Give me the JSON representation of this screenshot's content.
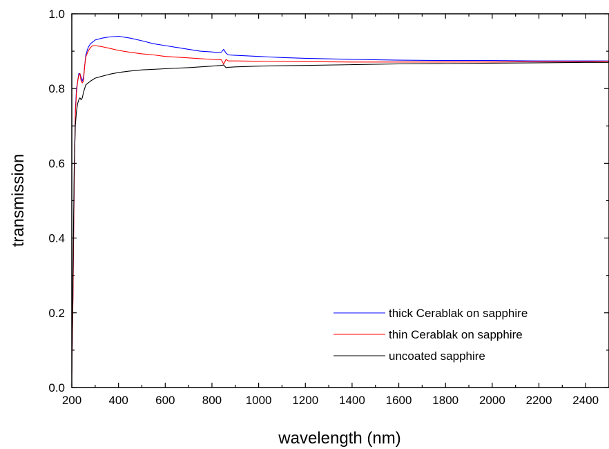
{
  "chart_data": {
    "type": "line",
    "xlabel": "wavelength (nm)",
    "ylabel": "transmission",
    "xlim": [
      200,
      2500
    ],
    "ylim": [
      0.0,
      1.0
    ],
    "x_ticks": [
      200,
      400,
      600,
      800,
      1000,
      1200,
      1400,
      1600,
      1800,
      2000,
      2200,
      2400
    ],
    "y_ticks": [
      0.0,
      0.2,
      0.4,
      0.6,
      0.8,
      1.0
    ],
    "y_tick_labels": [
      "0.0",
      "0.2",
      "0.4",
      "0.6",
      "0.8",
      "1.0"
    ],
    "grid": false,
    "legend_position": "lower-right",
    "series": [
      {
        "name": "thick Cerablak on sapphire",
        "color": "#0000ff",
        "x": [
          200,
          205,
          210,
          215,
          220,
          225,
          230,
          235,
          240,
          245,
          250,
          255,
          260,
          270,
          280,
          300,
          330,
          360,
          400,
          450,
          500,
          550,
          600,
          650,
          700,
          750,
          800,
          820,
          840,
          850,
          860,
          870,
          900,
          1000,
          1100,
          1200,
          1400,
          1600,
          1800,
          2000,
          2200,
          2400,
          2500
        ],
        "y": [
          0.04,
          0.25,
          0.55,
          0.74,
          0.8,
          0.82,
          0.84,
          0.84,
          0.83,
          0.82,
          0.83,
          0.86,
          0.89,
          0.91,
          0.92,
          0.93,
          0.935,
          0.938,
          0.94,
          0.935,
          0.928,
          0.92,
          0.915,
          0.91,
          0.905,
          0.9,
          0.898,
          0.896,
          0.897,
          0.905,
          0.895,
          0.89,
          0.889,
          0.886,
          0.883,
          0.881,
          0.878,
          0.876,
          0.875,
          0.875,
          0.874,
          0.874,
          0.874
        ]
      },
      {
        "name": "thin Cerablak on sapphire",
        "color": "#ff0000",
        "x": [
          200,
          205,
          210,
          215,
          220,
          225,
          230,
          235,
          240,
          245,
          250,
          255,
          260,
          270,
          280,
          290,
          300,
          330,
          360,
          400,
          450,
          500,
          550,
          600,
          700,
          800,
          840,
          850,
          860,
          870,
          900,
          1000,
          1200,
          1400,
          1600,
          1800,
          2000,
          2200,
          2400,
          2500
        ],
        "y": [
          0.03,
          0.24,
          0.54,
          0.73,
          0.79,
          0.82,
          0.835,
          0.84,
          0.82,
          0.815,
          0.82,
          0.86,
          0.885,
          0.9,
          0.91,
          0.915,
          0.915,
          0.912,
          0.908,
          0.902,
          0.897,
          0.893,
          0.89,
          0.886,
          0.882,
          0.878,
          0.877,
          0.865,
          0.878,
          0.874,
          0.874,
          0.873,
          0.872,
          0.871,
          0.871,
          0.871,
          0.871,
          0.872,
          0.872,
          0.873
        ]
      },
      {
        "name": "uncoated sapphire",
        "color": "#000000",
        "x": [
          200,
          205,
          210,
          215,
          220,
          225,
          230,
          235,
          240,
          245,
          250,
          255,
          260,
          270,
          280,
          300,
          330,
          360,
          400,
          450,
          500,
          600,
          700,
          800,
          840,
          850,
          860,
          870,
          900,
          1000,
          1200,
          1400,
          1600,
          1800,
          2000,
          2200,
          2400,
          2500
        ],
        "y": [
          0.04,
          0.3,
          0.58,
          0.7,
          0.74,
          0.76,
          0.77,
          0.775,
          0.77,
          0.775,
          0.79,
          0.8,
          0.81,
          0.815,
          0.82,
          0.828,
          0.833,
          0.838,
          0.843,
          0.847,
          0.85,
          0.853,
          0.856,
          0.86,
          0.862,
          0.863,
          0.856,
          0.857,
          0.858,
          0.86,
          0.862,
          0.864,
          0.866,
          0.867,
          0.868,
          0.869,
          0.87,
          0.87
        ]
      }
    ]
  }
}
